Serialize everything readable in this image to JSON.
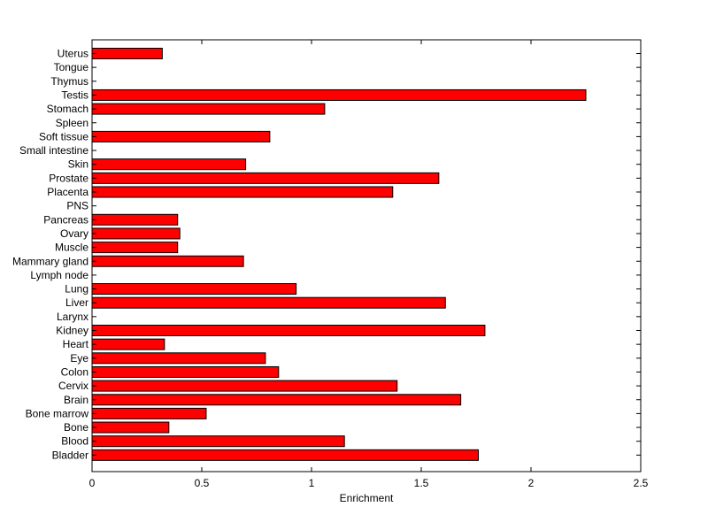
{
  "chart_data": {
    "type": "bar",
    "orientation": "horizontal",
    "title": "",
    "xlabel": "Enrichment",
    "ylabel": "",
    "xlim": [
      0,
      2.5
    ],
    "xticks": [
      0,
      0.5,
      1,
      1.5,
      2,
      2.5
    ],
    "xtick_labels": [
      "0",
      "0.5",
      "1",
      "1.5",
      "2",
      "2.5"
    ],
    "grid": false,
    "bar_color": "#ff0000",
    "categories": [
      "Uterus",
      "Tongue",
      "Thymus",
      "Testis",
      "Stomach",
      "Spleen",
      "Soft tissue",
      "Small intestine",
      "Skin",
      "Prostate",
      "Placenta",
      "PNS",
      "Pancreas",
      "Ovary",
      "Muscle",
      "Mammary gland",
      "Lymph node",
      "Lung",
      "Liver",
      "Larynx",
      "Kidney",
      "Heart",
      "Eye",
      "Colon",
      "Cervix",
      "Brain",
      "Bone marrow",
      "Bone",
      "Blood",
      "Bladder"
    ],
    "values": [
      0.32,
      0,
      0,
      2.25,
      1.06,
      0,
      0.81,
      0,
      0.7,
      1.58,
      1.37,
      0,
      0.39,
      0.4,
      0.39,
      0.69,
      0,
      0.93,
      1.61,
      0,
      1.79,
      0.33,
      0.79,
      0.85,
      1.39,
      1.68,
      0.52,
      0.35,
      1.15,
      1.76
    ]
  }
}
